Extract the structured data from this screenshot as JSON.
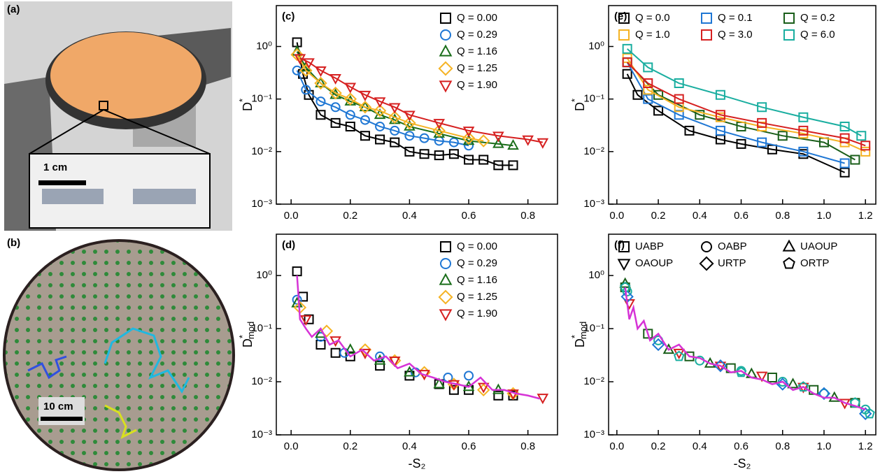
{
  "panels": {
    "a": {
      "label": "(a)",
      "scale": "1 cm"
    },
    "b": {
      "label": "(b)",
      "scale": "10 cm"
    }
  },
  "chart_data": [
    {
      "type": "scatter",
      "panel_label": "(c)",
      "log_y": true,
      "connect": true,
      "legend": "upper right",
      "legend_cols": 1,
      "ylabel": "D",
      "ylabel_sup": "*",
      "xlim": [
        -0.05,
        0.9
      ],
      "ylim": [
        0.001,
        6
      ],
      "xticks": [
        {
          "value": 0,
          "label": "0.0"
        },
        0.2,
        0.4,
        0.6,
        0.8
      ],
      "yticks": [
        {
          "value": 0.001,
          "label": "10⁻³"
        },
        {
          "value": 0.01,
          "label": "10⁻²"
        },
        {
          "value": 0.1,
          "label": "10⁻¹"
        },
        {
          "value": 1,
          "label": "10⁰"
        }
      ],
      "series": [
        {
          "name": "Q = 0.00",
          "color": "#000000",
          "marker": "square",
          "x": [
            0.02,
            0.04,
            0.06,
            0.1,
            0.15,
            0.2,
            0.25,
            0.3,
            0.35,
            0.4,
            0.45,
            0.5,
            0.55,
            0.6,
            0.65,
            0.7,
            0.75
          ],
          "values": [
            1.2,
            0.3,
            0.12,
            0.05,
            0.035,
            0.03,
            0.02,
            0.017,
            0.015,
            0.01,
            0.009,
            0.0085,
            0.009,
            0.007,
            0.007,
            0.0055,
            0.0055
          ]
        },
        {
          "name": "Q = 0.29",
          "color": "#1f77d4",
          "marker": "circle",
          "x": [
            0.02,
            0.05,
            0.1,
            0.15,
            0.2,
            0.25,
            0.3,
            0.35,
            0.4,
            0.45,
            0.5,
            0.55,
            0.6
          ],
          "values": [
            0.35,
            0.15,
            0.09,
            0.07,
            0.05,
            0.04,
            0.03,
            0.025,
            0.02,
            0.018,
            0.016,
            0.015,
            0.013
          ]
        },
        {
          "name": "Q = 1.16",
          "color": "#1a6e1a",
          "marker": "triangle",
          "x": [
            0.02,
            0.05,
            0.1,
            0.15,
            0.2,
            0.25,
            0.3,
            0.35,
            0.4,
            0.5,
            0.6,
            0.7,
            0.75
          ],
          "values": [
            0.8,
            0.4,
            0.2,
            0.12,
            0.09,
            0.07,
            0.05,
            0.04,
            0.03,
            0.022,
            0.016,
            0.014,
            0.013
          ]
        },
        {
          "name": "Q = 1.25",
          "color": "#f5b324",
          "marker": "diamond",
          "x": [
            0.02,
            0.05,
            0.1,
            0.15,
            0.2,
            0.25,
            0.3,
            0.35,
            0.4,
            0.5,
            0.6,
            0.65
          ],
          "values": [
            0.7,
            0.35,
            0.2,
            0.13,
            0.1,
            0.07,
            0.06,
            0.045,
            0.035,
            0.025,
            0.018,
            0.016
          ]
        },
        {
          "name": "Q = 1.90",
          "color": "#d62020",
          "marker": "triangle_down",
          "x": [
            0.03,
            0.06,
            0.1,
            0.15,
            0.2,
            0.25,
            0.3,
            0.35,
            0.4,
            0.5,
            0.6,
            0.7,
            0.8,
            0.85
          ],
          "values": [
            0.6,
            0.5,
            0.35,
            0.25,
            0.17,
            0.12,
            0.09,
            0.07,
            0.05,
            0.035,
            0.025,
            0.02,
            0.017,
            0.015
          ]
        }
      ]
    },
    {
      "type": "scatter",
      "panel_label": "(d)",
      "log_y": true,
      "connect": false,
      "legend": "upper right",
      "legend_cols": 1,
      "ylabel": "D",
      "ylabel_sup": "*",
      "ylabel_sub": "mod",
      "xlabel": "-S₂",
      "xlim": [
        -0.05,
        0.9
      ],
      "ylim": [
        0.001,
        6
      ],
      "xticks": [
        {
          "value": 0,
          "label": "0.0"
        },
        0.2,
        0.4,
        0.6,
        0.8
      ],
      "yticks": [
        {
          "value": 0.001,
          "label": "10⁻³"
        },
        {
          "value": 0.01,
          "label": "10⁻²"
        },
        {
          "value": 0.1,
          "label": "10⁻¹"
        },
        {
          "value": 1,
          "label": "10⁰"
        }
      ],
      "series": [
        {
          "name": "Q = 0.00",
          "color": "#000000",
          "marker": "square",
          "x": [
            0.02,
            0.04,
            0.06,
            0.1,
            0.15,
            0.2,
            0.3,
            0.4,
            0.5,
            0.55,
            0.6,
            0.7,
            0.75
          ],
          "values": [
            1.2,
            0.4,
            0.15,
            0.05,
            0.035,
            0.03,
            0.02,
            0.013,
            0.009,
            0.007,
            0.007,
            0.0055,
            0.0055
          ]
        },
        {
          "name": "Q = 0.29",
          "color": "#1f77d4",
          "marker": "circle",
          "x": [
            0.02,
            0.1,
            0.18,
            0.3,
            0.42,
            0.53,
            0.6
          ],
          "values": [
            0.35,
            0.07,
            0.035,
            0.03,
            0.015,
            0.012,
            0.013
          ]
        },
        {
          "name": "Q = 1.16",
          "color": "#1a6e1a",
          "marker": "triangle",
          "x": [
            0.02,
            0.1,
            0.2,
            0.3,
            0.4,
            0.5,
            0.6,
            0.7
          ],
          "values": [
            0.3,
            0.08,
            0.04,
            0.025,
            0.015,
            0.009,
            0.008,
            0.007
          ]
        },
        {
          "name": "Q = 1.25",
          "color": "#f5b324",
          "marker": "diamond",
          "x": [
            0.03,
            0.12,
            0.25,
            0.35,
            0.45,
            0.55,
            0.65,
            0.75
          ],
          "values": [
            0.25,
            0.09,
            0.04,
            0.025,
            0.015,
            0.009,
            0.007,
            0.006
          ]
        },
        {
          "name": "Q = 1.90",
          "color": "#d62020",
          "marker": "triangle_down",
          "x": [
            0.05,
            0.15,
            0.25,
            0.35,
            0.45,
            0.55,
            0.65,
            0.75,
            0.85
          ],
          "values": [
            0.15,
            0.06,
            0.035,
            0.025,
            0.014,
            0.009,
            0.008,
            0.006,
            0.005
          ]
        },
        {
          "color": "#d633d6",
          "style": "line",
          "x": [
            0.02,
            0.025,
            0.03,
            0.05,
            0.07,
            0.1,
            0.13,
            0.16,
            0.2,
            0.24,
            0.28,
            0.32,
            0.36,
            0.4,
            0.44,
            0.48,
            0.52,
            0.56,
            0.6,
            0.64,
            0.68,
            0.72,
            0.76,
            0.8,
            0.84
          ],
          "values": [
            1.0,
            0.4,
            0.15,
            0.1,
            0.07,
            0.1,
            0.05,
            0.06,
            0.03,
            0.04,
            0.025,
            0.03,
            0.018,
            0.022,
            0.014,
            0.012,
            0.01,
            0.009,
            0.008,
            0.012,
            0.007,
            0.007,
            0.006,
            0.0055,
            0.0048
          ]
        }
      ]
    },
    {
      "type": "scatter",
      "panel_label": "(e)",
      "log_y": true,
      "connect": true,
      "legend": "upper center",
      "legend_cols": 3,
      "ylabel": "D",
      "ylabel_sup": "*",
      "xlim": [
        -0.04,
        1.25
      ],
      "ylim": [
        0.001,
        6
      ],
      "xticks": [
        {
          "value": 0,
          "label": "0.0"
        },
        0.2,
        0.4,
        0.6,
        0.8,
        {
          "value": 1,
          "label": "1.0"
        },
        1.2
      ],
      "yticks": [
        {
          "value": 0.001,
          "label": "10⁻³"
        },
        {
          "value": 0.01,
          "label": "10⁻²"
        },
        {
          "value": 0.1,
          "label": "10⁻¹"
        },
        {
          "value": 1,
          "label": "10⁰"
        }
      ],
      "series": [
        {
          "name": "Q = 0.0",
          "color": "#000000",
          "marker": "square",
          "x": [
            0.05,
            0.1,
            0.2,
            0.35,
            0.5,
            0.6,
            0.75,
            0.9,
            1.1
          ],
          "values": [
            0.3,
            0.12,
            0.06,
            0.025,
            0.017,
            0.014,
            0.011,
            0.009,
            0.004
          ]
        },
        {
          "name": "Q = 0.1",
          "color": "#1f77d4",
          "marker": "square",
          "x": [
            0.05,
            0.15,
            0.3,
            0.5,
            0.7,
            0.9,
            1.1
          ],
          "values": [
            0.5,
            0.1,
            0.05,
            0.025,
            0.015,
            0.01,
            0.006
          ]
        },
        {
          "name": "Q = 0.2",
          "color": "#1a5e1a",
          "marker": "square",
          "x": [
            0.05,
            0.2,
            0.4,
            0.6,
            0.8,
            1.0,
            1.15
          ],
          "values": [
            0.5,
            0.12,
            0.05,
            0.03,
            0.02,
            0.015,
            0.007
          ]
        },
        {
          "name": "Q = 1.0",
          "color": "#f5b324",
          "marker": "square",
          "x": [
            0.05,
            0.15,
            0.3,
            0.5,
            0.7,
            0.9,
            1.1,
            1.2
          ],
          "values": [
            0.6,
            0.15,
            0.07,
            0.045,
            0.03,
            0.022,
            0.015,
            0.01
          ]
        },
        {
          "name": "Q = 3.0",
          "color": "#d62020",
          "marker": "square",
          "x": [
            0.05,
            0.15,
            0.3,
            0.5,
            0.7,
            0.9,
            1.1,
            1.2
          ],
          "values": [
            0.5,
            0.2,
            0.1,
            0.05,
            0.035,
            0.025,
            0.018,
            0.013
          ]
        },
        {
          "name": "Q = 6.0",
          "color": "#1aaea0",
          "marker": "square",
          "x": [
            0.05,
            0.15,
            0.3,
            0.5,
            0.7,
            0.9,
            1.1,
            1.18
          ],
          "values": [
            0.9,
            0.4,
            0.2,
            0.12,
            0.07,
            0.045,
            0.03,
            0.02
          ]
        }
      ]
    },
    {
      "type": "scatter",
      "panel_label": "(f)",
      "log_y": true,
      "connect": false,
      "legend": "upper center",
      "legend_cols": 3,
      "legend_color": "#000000",
      "ylabel": "D",
      "ylabel_sup": "*",
      "ylabel_sub": "mod",
      "xlabel": "-S₂",
      "xlim": [
        -0.04,
        1.25
      ],
      "ylim": [
        0.001,
        6
      ],
      "xticks": [
        {
          "value": 0,
          "label": "0.0"
        },
        0.2,
        0.4,
        0.6,
        0.8,
        {
          "value": 1,
          "label": "1.0"
        },
        1.2
      ],
      "yticks": [
        {
          "value": 0.001,
          "label": "10⁻³"
        },
        {
          "value": 0.01,
          "label": "10⁻²"
        },
        {
          "value": 0.1,
          "label": "10⁻¹"
        },
        {
          "value": 1,
          "label": "10⁰"
        }
      ],
      "series": [
        {
          "name": "UABP",
          "color": "#1a5e1a",
          "marker": "square",
          "x": [
            0.04,
            0.15,
            0.35,
            0.55,
            0.75,
            0.95,
            1.15
          ],
          "values": [
            0.6,
            0.08,
            0.03,
            0.018,
            0.012,
            0.007,
            0.004
          ]
        },
        {
          "name": "OABP",
          "color": "#1aaea0",
          "marker": "circle",
          "x": [
            0.05,
            0.2,
            0.4,
            0.6,
            0.8,
            1.0,
            1.2
          ],
          "values": [
            0.5,
            0.06,
            0.025,
            0.016,
            0.01,
            0.006,
            0.003
          ]
        },
        {
          "name": "UAOUP",
          "color": "#1a5e1a",
          "marker": "triangle",
          "x": [
            0.04,
            0.25,
            0.45,
            0.65,
            0.85,
            1.05
          ],
          "values": [
            0.7,
            0.04,
            0.022,
            0.014,
            0.009,
            0.005
          ]
        },
        {
          "name": "OAOUP",
          "color": "#d62020",
          "marker": "triangle_down",
          "x": [
            0.06,
            0.3,
            0.5,
            0.7,
            0.9,
            1.1
          ],
          "values": [
            0.3,
            0.035,
            0.02,
            0.013,
            0.008,
            0.004
          ]
        },
        {
          "name": "URTP",
          "color": "#1f77d4",
          "marker": "diamond",
          "x": [
            0.05,
            0.2,
            0.5,
            0.8,
            1.0,
            1.2
          ],
          "values": [
            0.4,
            0.05,
            0.02,
            0.009,
            0.006,
            0.0025
          ]
        },
        {
          "name": "ORTP",
          "color": "#1aaea0",
          "marker": "pentagon",
          "x": [
            0.04,
            0.3,
            0.6,
            0.9,
            1.15,
            1.22
          ],
          "values": [
            0.6,
            0.03,
            0.015,
            0.008,
            0.004,
            0.0025
          ]
        },
        {
          "color": "#d633d6",
          "style": "line",
          "x": [
            0.04,
            0.05,
            0.06,
            0.08,
            0.1,
            0.13,
            0.16,
            0.2,
            0.25,
            0.3,
            0.35,
            0.4,
            0.45,
            0.5,
            0.55,
            0.6,
            0.65,
            0.7,
            0.75,
            0.8,
            0.85,
            0.9,
            0.95,
            1.0,
            1.05,
            1.1,
            1.15,
            1.2
          ],
          "values": [
            0.6,
            0.3,
            0.15,
            0.25,
            0.1,
            0.14,
            0.06,
            0.08,
            0.04,
            0.05,
            0.03,
            0.028,
            0.022,
            0.02,
            0.015,
            0.016,
            0.012,
            0.011,
            0.009,
            0.01,
            0.007,
            0.008,
            0.006,
            0.005,
            0.005,
            0.004,
            0.0035,
            0.003
          ]
        }
      ]
    }
  ]
}
